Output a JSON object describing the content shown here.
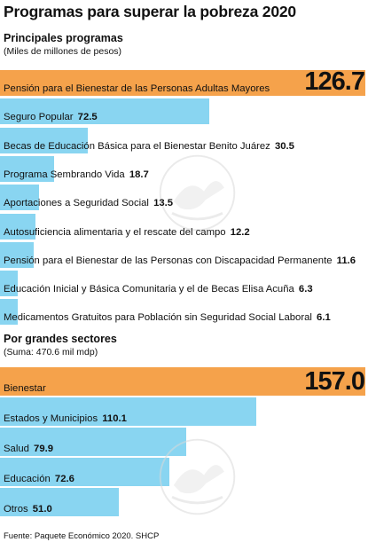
{
  "title": "Programas para superar la pobreza 2020",
  "section1": {
    "heading": "Principales programas",
    "subtitle": "(Miles de millones de pesos)"
  },
  "section2": {
    "heading": "Por grandes sectores",
    "subtitle": "(Suma: 470.6 mil mdp)"
  },
  "source": "Fuente: Paquete Económico 2020. SHCP",
  "colors": {
    "highlight": "#f5a24b",
    "bar": "#89d5f1"
  },
  "chart_data": [
    {
      "type": "bar",
      "orientation": "horizontal",
      "categories": [
        "Pensión para el Bienestar de las Personas Adultas Mayores",
        "Seguro Popular",
        "Becas de Educación Básica para el Bienestar Benito Juárez",
        "Programa Sembrando Vida",
        "Aportaciones a Seguridad Social",
        "Autosuficiencia alimentaria y el rescate del campo",
        "Pensión para el Bienestar de las Personas con Discapacidad Permanente",
        "Educación Inicial y Básica Comunitaria y el de Becas Elisa Acuña",
        "Medicamentos Gratuitos para Población sin Seguridad Social Laboral"
      ],
      "values": [
        126.7,
        72.5,
        30.5,
        18.7,
        13.5,
        12.2,
        11.6,
        6.3,
        6.1
      ],
      "value_labels": [
        "126.7",
        "72.5",
        "30.5",
        "18.7",
        "13.5",
        "12.2",
        "11.6",
        "6.3",
        "6.1"
      ],
      "highlight_index": 0
    },
    {
      "type": "bar",
      "orientation": "horizontal",
      "categories": [
        "Bienestar",
        "Estados y Municipios",
        "Salud",
        "Educación",
        "Otros"
      ],
      "values": [
        157.0,
        110.1,
        79.9,
        72.6,
        51.0
      ],
      "value_labels": [
        "157.0",
        "110.1",
        "79.9",
        "72.6",
        "51.0"
      ],
      "highlight_index": 0
    }
  ]
}
